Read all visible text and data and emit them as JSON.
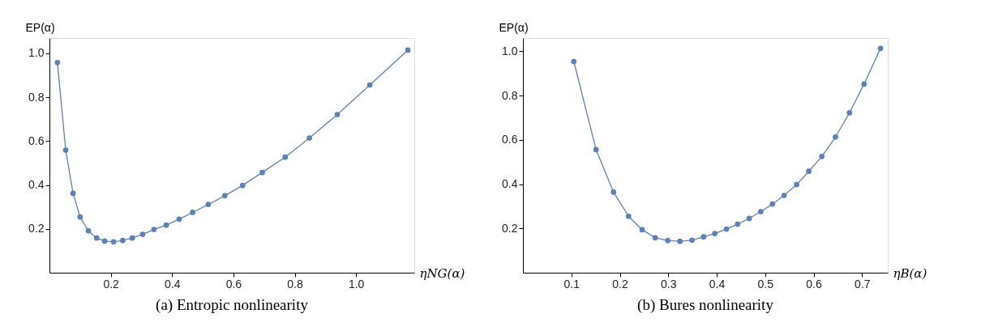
{
  "chart_data": [
    {
      "type": "line",
      "title": "(a) Entropic nonlinearity",
      "xlabel": "ηNG(α)",
      "ylabel": "EP(α)",
      "marker": "circle",
      "line_style": "solid",
      "xlim": [
        0,
        1.19
      ],
      "ylim": [
        0,
        1.07
      ],
      "xticks": [
        0.2,
        0.4,
        0.6,
        0.8,
        {
          "value": 1,
          "label": "1.0"
        }
      ],
      "yticks": [
        0.2,
        0.4,
        0.6,
        0.8,
        {
          "value": 1,
          "label": "1.0"
        }
      ],
      "x": [
        0.026,
        0.053,
        0.077,
        0.1,
        0.127,
        0.154,
        0.18,
        0.209,
        0.239,
        0.27,
        0.304,
        0.341,
        0.381,
        0.423,
        0.467,
        0.518,
        0.572,
        0.63,
        0.694,
        0.769,
        0.848,
        0.939,
        1.045,
        1.169
      ],
      "series": [
        {
          "color": "#5e81b5",
          "values": [
            0.958,
            0.559,
            0.362,
            0.254,
            0.191,
            0.158,
            0.144,
            0.141,
            0.147,
            0.158,
            0.175,
            0.197,
            0.217,
            0.244,
            0.275,
            0.311,
            0.351,
            0.398,
            0.457,
            0.527,
            0.614,
            0.721,
            0.856,
            1.015
          ]
        }
      ]
    },
    {
      "type": "line",
      "title": "(b) Bures nonlinearity",
      "xlabel": "ηB(α)",
      "ylabel": "EP(α)",
      "marker": "circle",
      "line_style": "solid",
      "xlim": [
        0,
        0.753
      ],
      "ylim": [
        0,
        1.06
      ],
      "xticks": [
        0.1,
        0.2,
        0.3,
        0.4,
        0.5,
        0.6,
        0.7
      ],
      "yticks": [
        0.2,
        0.4,
        0.6,
        0.8,
        {
          "value": 1,
          "label": "1.0"
        }
      ],
      "x": [
        0.105,
        0.151,
        0.187,
        0.218,
        0.246,
        0.273,
        0.299,
        0.324,
        0.349,
        0.373,
        0.396,
        0.42,
        0.443,
        0.467,
        0.491,
        0.515,
        0.539,
        0.565,
        0.59,
        0.617,
        0.645,
        0.674,
        0.704,
        0.738
      ],
      "series": [
        {
          "color": "#5e81b5",
          "values": [
            0.954,
            0.556,
            0.364,
            0.255,
            0.194,
            0.158,
            0.145,
            0.142,
            0.147,
            0.162,
            0.177,
            0.197,
            0.219,
            0.245,
            0.276,
            0.31,
            0.349,
            0.398,
            0.458,
            0.525,
            0.613,
            0.722,
            0.852,
            1.013
          ]
        }
      ]
    }
  ]
}
